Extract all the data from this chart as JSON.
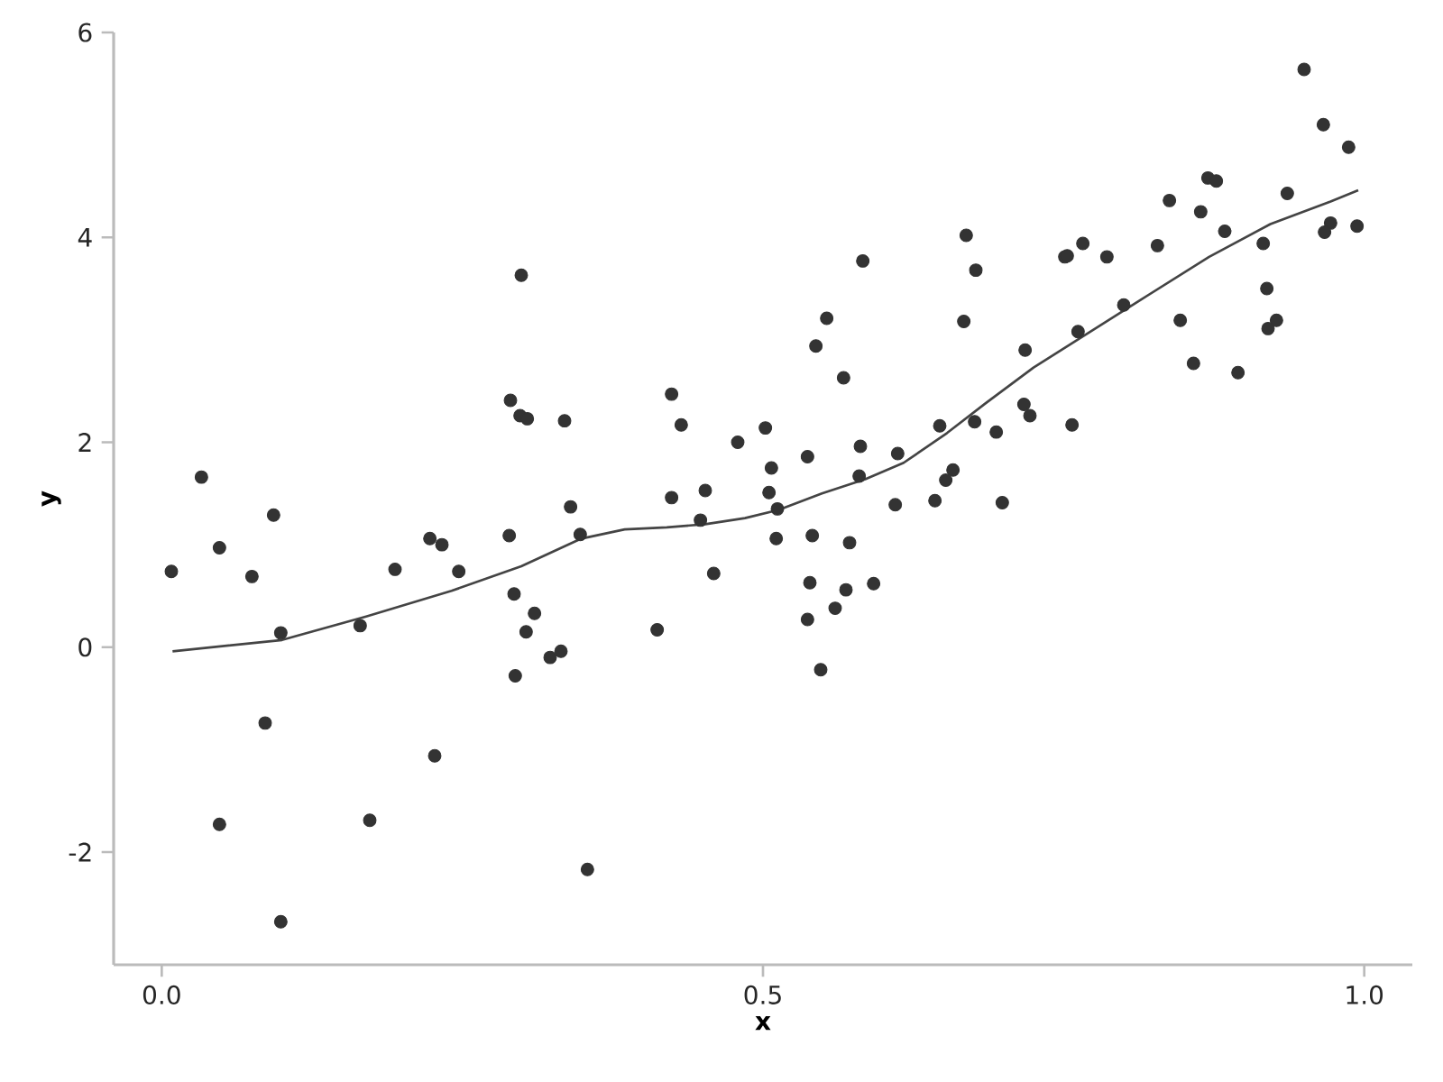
{
  "chart_data": {
    "type": "scatter",
    "xlabel": "x",
    "ylabel": "y",
    "xlim": [
      -0.04,
      1.04
    ],
    "ylim": [
      -3.1,
      6
    ],
    "xticks": [
      {
        "value": 0,
        "label": "0.0"
      },
      0.5,
      {
        "value": 1,
        "label": "1.0"
      }
    ],
    "yticks": [
      -2,
      0,
      2,
      4,
      6
    ],
    "grid": false,
    "series": [
      {
        "type": "scatter",
        "color": "#333333",
        "marker": "circle",
        "x": [
          0.008,
          0.033,
          0.048,
          0.048,
          0.075,
          0.086,
          0.093,
          0.099,
          0.099,
          0.165,
          0.173,
          0.194,
          0.223,
          0.227,
          0.233,
          0.247,
          0.29,
          0.298,
          0.304,
          0.335,
          0.34,
          0.348,
          0.289,
          0.293,
          0.31,
          0.303,
          0.323,
          0.332,
          0.294,
          0.354,
          0.299,
          0.583,
          0.669,
          0.677,
          0.667,
          0.553,
          0.544,
          0.567,
          0.718,
          0.717,
          0.722,
          0.751,
          0.424,
          0.432,
          0.479,
          0.502,
          0.507,
          0.505,
          0.512,
          0.511,
          0.537,
          0.581,
          0.58,
          0.612,
          0.647,
          0.676,
          0.694,
          0.658,
          0.652,
          0.643,
          0.61,
          0.699,
          0.424,
          0.452,
          0.448,
          0.541,
          0.572,
          0.459,
          0.539,
          0.569,
          0.592,
          0.56,
          0.537,
          0.412,
          0.548,
          0.95,
          0.966,
          0.987,
          0.936,
          0.972,
          0.967,
          0.994,
          0.916,
          0.919,
          0.927,
          0.92,
          0.895,
          0.87,
          0.877,
          0.838,
          0.864,
          0.884,
          0.828,
          0.847,
          0.858,
          0.766,
          0.786,
          0.753,
          0.8,
          0.762,
          0.757
        ],
        "values": [
          0.74,
          1.66,
          0.97,
          -1.73,
          0.69,
          -0.74,
          1.29,
          0.14,
          -2.68,
          0.21,
          -1.69,
          0.76,
          1.06,
          -1.06,
          1.0,
          0.74,
          2.41,
          2.26,
          2.23,
          2.21,
          1.37,
          1.1,
          1.09,
          0.52,
          0.33,
          0.15,
          -0.1,
          -0.04,
          -0.28,
          -2.17,
          3.63,
          3.77,
          4.02,
          3.68,
          3.18,
          3.21,
          2.94,
          2.63,
          2.9,
          2.37,
          2.26,
          3.81,
          2.47,
          2.17,
          2.0,
          2.14,
          1.75,
          1.51,
          1.35,
          1.06,
          1.86,
          1.96,
          1.67,
          1.89,
          2.16,
          2.2,
          2.1,
          1.73,
          1.63,
          1.43,
          1.39,
          1.41,
          1.46,
          1.53,
          1.24,
          1.09,
          1.02,
          0.72,
          0.63,
          0.56,
          0.62,
          0.38,
          0.27,
          0.17,
          -0.22,
          5.64,
          5.1,
          4.88,
          4.43,
          4.14,
          4.05,
          4.11,
          3.94,
          3.5,
          3.19,
          3.11,
          2.68,
          4.58,
          4.55,
          4.36,
          4.25,
          4.06,
          3.92,
          3.19,
          2.77,
          3.94,
          3.81,
          3.82,
          3.34,
          3.08,
          2.17
        ]
      },
      {
        "type": "line",
        "color": "#444444",
        "marker": "none",
        "line_style": "solid",
        "x": [
          0.009,
          0.1,
          0.17,
          0.241,
          0.299,
          0.349,
          0.385,
          0.42,
          0.452,
          0.485,
          0.513,
          0.549,
          0.585,
          0.617,
          0.653,
          0.685,
          0.725,
          0.771,
          0.814,
          0.871,
          0.922,
          0.972,
          0.995
        ],
        "values": [
          -0.04,
          0.07,
          0.3,
          0.55,
          0.79,
          1.06,
          1.15,
          1.17,
          1.2,
          1.26,
          1.34,
          1.5,
          1.64,
          1.8,
          2.09,
          2.38,
          2.73,
          3.07,
          3.39,
          3.81,
          4.13,
          4.35,
          4.46
        ]
      }
    ]
  }
}
